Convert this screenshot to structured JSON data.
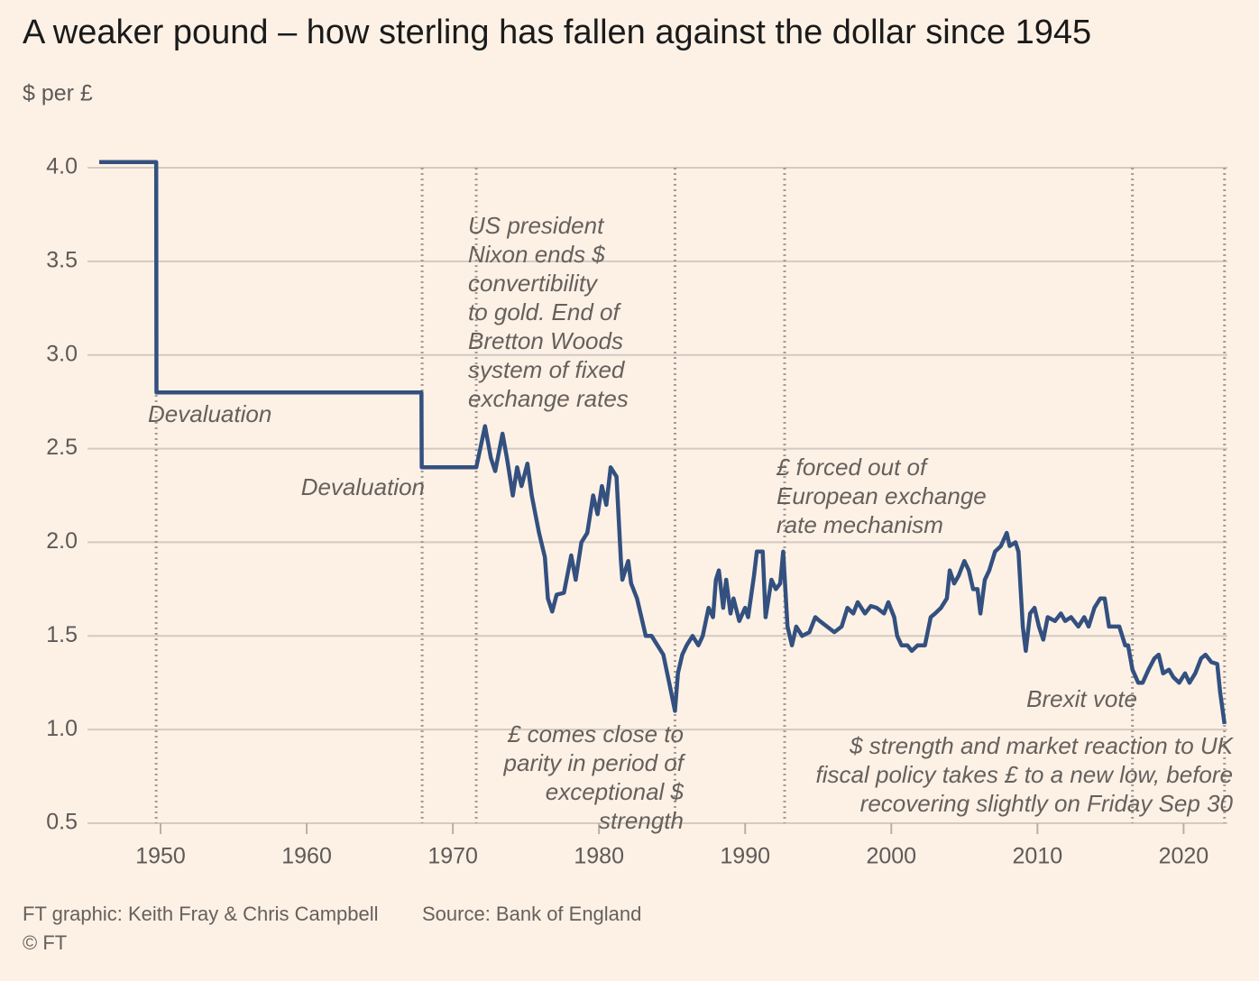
{
  "chart_data": {
    "type": "line",
    "title": "A weaker pound – how sterling has fallen against the dollar since 1945",
    "y_label": "$ per £",
    "color": "#33507f",
    "grid": true,
    "xlim": [
      1945,
      2023
    ],
    "ylim": [
      0.5,
      4.0
    ],
    "xticks": [
      1950,
      1960,
      1970,
      1980,
      1990,
      2000,
      2010,
      2020
    ],
    "yticks": [
      0.5,
      {
        "value": 1.0,
        "label": "1.0"
      },
      1.5,
      {
        "value": 2.0,
        "label": "2.0"
      },
      2.5,
      {
        "value": 3.0,
        "label": "3.0"
      },
      3.5,
      {
        "value": 4.0,
        "label": "4.0"
      }
    ],
    "x": [
      1945.8,
      1949.7,
      1949.72,
      1967.85,
      1967.87,
      1971.6,
      1972.2,
      1972.6,
      1972.9,
      1973.4,
      1973.7,
      1974.1,
      1974.4,
      1974.7,
      1975.1,
      1975.4,
      1975.9,
      1976.3,
      1976.5,
      1976.8,
      1977.1,
      1977.6,
      1978.1,
      1978.4,
      1978.8,
      1979.2,
      1979.6,
      1979.9,
      1980.2,
      1980.5,
      1980.8,
      1981.2,
      1981.5,
      1981.6,
      1982.0,
      1982.2,
      1982.6,
      1982.9,
      1983.2,
      1983.6,
      1984.0,
      1984.4,
      1984.8,
      1985.2,
      1985.4,
      1985.7,
      1986.0,
      1986.4,
      1986.8,
      1987.1,
      1987.5,
      1987.8,
      1988.0,
      1988.2,
      1988.5,
      1988.7,
      1989.0,
      1989.2,
      1989.6,
      1990.0,
      1990.2,
      1990.6,
      1990.8,
      1991.2,
      1991.4,
      1991.8,
      1992.1,
      1992.4,
      1992.6,
      1992.9,
      1993.2,
      1993.5,
      1993.9,
      1994.4,
      1994.8,
      1995.1,
      1995.6,
      1996.1,
      1996.6,
      1997.0,
      1997.4,
      1997.7,
      1998.2,
      1998.6,
      1999.0,
      1999.5,
      1999.8,
      2000.2,
      2000.4,
      2000.7,
      2001.1,
      2001.4,
      2001.8,
      2002.3,
      2002.7,
      2003.0,
      2003.4,
      2003.8,
      2004.0,
      2004.3,
      2004.6,
      2005.0,
      2005.3,
      2005.6,
      2005.9,
      2006.1,
      2006.4,
      2006.7,
      2007.1,
      2007.5,
      2007.9,
      2008.1,
      2008.5,
      2008.7,
      2009.0,
      2009.2,
      2009.5,
      2009.8,
      2010.1,
      2010.4,
      2010.7,
      2011.2,
      2011.6,
      2011.9,
      2012.3,
      2012.8,
      2013.2,
      2013.5,
      2013.9,
      2014.3,
      2014.6,
      2014.9,
      2015.3,
      2015.6,
      2016.0,
      2016.2,
      2016.5,
      2016.9,
      2017.2,
      2017.6,
      2018.0,
      2018.3,
      2018.6,
      2019.0,
      2019.3,
      2019.7,
      2020.1,
      2020.4,
      2020.8,
      2021.2,
      2021.5,
      2021.9,
      2022.3,
      2022.5,
      2022.8
    ],
    "values": [
      4.03,
      4.03,
      2.8,
      2.8,
      2.4,
      2.4,
      2.62,
      2.45,
      2.38,
      2.58,
      2.45,
      2.25,
      2.4,
      2.3,
      2.42,
      2.25,
      2.05,
      1.92,
      1.7,
      1.63,
      1.72,
      1.73,
      1.93,
      1.8,
      2.0,
      2.05,
      2.25,
      2.15,
      2.3,
      2.2,
      2.4,
      2.35,
      1.9,
      1.8,
      1.9,
      1.78,
      1.7,
      1.6,
      1.5,
      1.5,
      1.45,
      1.4,
      1.25,
      1.1,
      1.3,
      1.4,
      1.45,
      1.5,
      1.45,
      1.5,
      1.65,
      1.6,
      1.8,
      1.85,
      1.65,
      1.8,
      1.62,
      1.7,
      1.58,
      1.65,
      1.6,
      1.82,
      1.95,
      1.95,
      1.6,
      1.8,
      1.75,
      1.78,
      1.95,
      1.55,
      1.45,
      1.55,
      1.5,
      1.52,
      1.6,
      1.58,
      1.55,
      1.52,
      1.55,
      1.65,
      1.62,
      1.68,
      1.62,
      1.66,
      1.65,
      1.62,
      1.68,
      1.6,
      1.5,
      1.45,
      1.45,
      1.42,
      1.45,
      1.45,
      1.6,
      1.62,
      1.65,
      1.7,
      1.85,
      1.78,
      1.82,
      1.9,
      1.85,
      1.75,
      1.75,
      1.62,
      1.8,
      1.85,
      1.95,
      1.98,
      2.05,
      1.98,
      2.0,
      1.95,
      1.55,
      1.42,
      1.62,
      1.65,
      1.55,
      1.48,
      1.6,
      1.58,
      1.62,
      1.58,
      1.6,
      1.55,
      1.6,
      1.55,
      1.65,
      1.7,
      1.7,
      1.55,
      1.55,
      1.55,
      1.45,
      1.45,
      1.32,
      1.25,
      1.25,
      1.32,
      1.38,
      1.4,
      1.3,
      1.32,
      1.28,
      1.25,
      1.3,
      1.25,
      1.3,
      1.38,
      1.4,
      1.36,
      1.35,
      1.2,
      1.03
    ],
    "events": [
      {
        "x": 1949.7,
        "label": [
          "Devaluation"
        ]
      },
      {
        "x": 1967.9,
        "label": [
          "Devaluation"
        ]
      },
      {
        "x": 1971.6,
        "label": [
          "US president",
          "Nixon ends $",
          "convertibility",
          "to gold. End of",
          "Bretton Woods",
          "system of fixed",
          "exchange rates"
        ]
      },
      {
        "x": 1985.2,
        "label": [
          "£ comes close to",
          "parity in period of",
          "exceptional $",
          "strength"
        ]
      },
      {
        "x": 1992.7,
        "label": [
          "£ forced out of",
          "European exchange",
          "rate mechanism"
        ]
      },
      {
        "x": 2016.5,
        "label": [
          "Brexit vote"
        ]
      },
      {
        "x": 2022.8,
        "label": [
          "$ strength and market reaction to UK",
          "fiscal policy takes £ to a new low, before",
          "recovering slightly on Friday Sep 30"
        ]
      }
    ],
    "credit": "FT graphic: Keith Fray & Chris Campbell",
    "source": "Source: Bank of England",
    "copyright": "© FT"
  }
}
